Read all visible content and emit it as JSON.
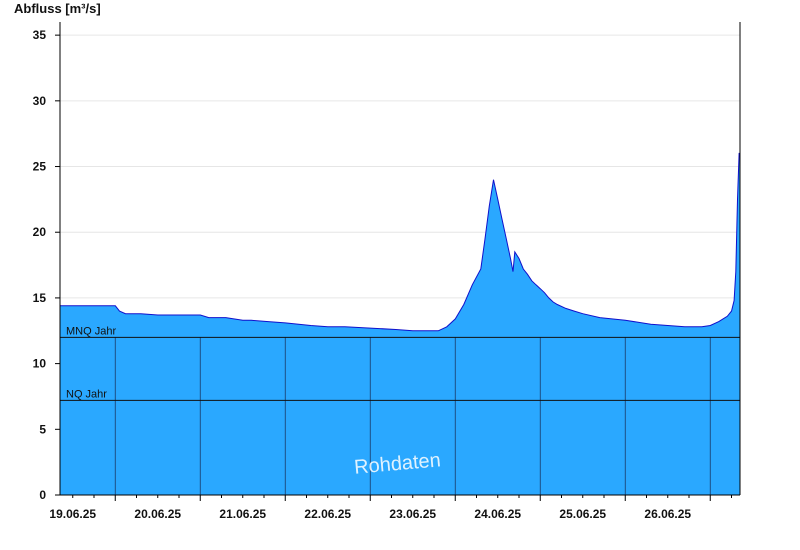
{
  "chart_data": {
    "type": "area",
    "ylabel": "Abfluss [m³/s]",
    "xlabel": "",
    "ylim": [
      0,
      36
    ],
    "yticks": [
      0,
      5,
      10,
      15,
      20,
      25,
      30,
      35
    ],
    "xlim": [
      -0.15,
      7.85
    ],
    "x_unit": "days from 19.06.25 12:00",
    "xticks": [
      {
        "pos": 0,
        "label": "19.06.25"
      },
      {
        "pos": 1,
        "label": "20.06.25"
      },
      {
        "pos": 2,
        "label": "21.06.25"
      },
      {
        "pos": 3,
        "label": "22.06.25"
      },
      {
        "pos": 4,
        "label": "23.06.25"
      },
      {
        "pos": 5,
        "label": "24.06.25"
      },
      {
        "pos": 6,
        "label": "25.06.25"
      },
      {
        "pos": 7,
        "label": "26.06.25"
      }
    ],
    "series": [
      {
        "name": "Abfluss",
        "x": [
          -0.15,
          0.3,
          0.5,
          0.55,
          0.62,
          0.8,
          1.0,
          1.1,
          1.3,
          1.5,
          1.6,
          1.8,
          2.0,
          2.1,
          2.3,
          2.5,
          2.8,
          3.0,
          3.2,
          3.5,
          3.8,
          4.0,
          4.05,
          4.2,
          4.3,
          4.4,
          4.5,
          4.6,
          4.7,
          4.8,
          4.85,
          4.9,
          4.95,
          5.0,
          5.05,
          5.1,
          5.15,
          5.18,
          5.2,
          5.25,
          5.3,
          5.35,
          5.4,
          5.45,
          5.5,
          5.55,
          5.6,
          5.65,
          5.7,
          5.8,
          5.9,
          6.0,
          6.2,
          6.5,
          6.8,
          7.0,
          7.2,
          7.4,
          7.5,
          7.6,
          7.65,
          7.7,
          7.75,
          7.78,
          7.8,
          7.82,
          7.84,
          7.85
        ],
        "y": [
          14.4,
          14.4,
          14.4,
          14.0,
          13.8,
          13.8,
          13.7,
          13.7,
          13.7,
          13.7,
          13.5,
          13.5,
          13.3,
          13.3,
          13.2,
          13.1,
          12.9,
          12.8,
          12.8,
          12.7,
          12.6,
          12.5,
          12.5,
          12.5,
          12.5,
          12.8,
          13.4,
          14.5,
          16.0,
          17.2,
          19.5,
          22.0,
          24.0,
          22.5,
          21.0,
          19.5,
          18.0,
          17.0,
          18.5,
          18.0,
          17.2,
          16.8,
          16.3,
          16.0,
          15.7,
          15.4,
          15.0,
          14.7,
          14.5,
          14.2,
          14.0,
          13.8,
          13.5,
          13.3,
          13.0,
          12.9,
          12.8,
          12.8,
          12.9,
          13.2,
          13.4,
          13.6,
          14.0,
          14.8,
          17.0,
          22.5,
          26.0,
          26.0
        ]
      }
    ],
    "reference_lines": [
      {
        "label": "MNQ Jahr",
        "y": 12.0
      },
      {
        "label": "NQ Jahr",
        "y": 7.2
      }
    ],
    "watermark": "Rohdaten",
    "colors": {
      "fill": "#2aa8ff",
      "line": "#1010cc",
      "ref": "#111111",
      "grid": "#e6e6e6",
      "divider": "#1a3a66"
    },
    "grid": true
  }
}
